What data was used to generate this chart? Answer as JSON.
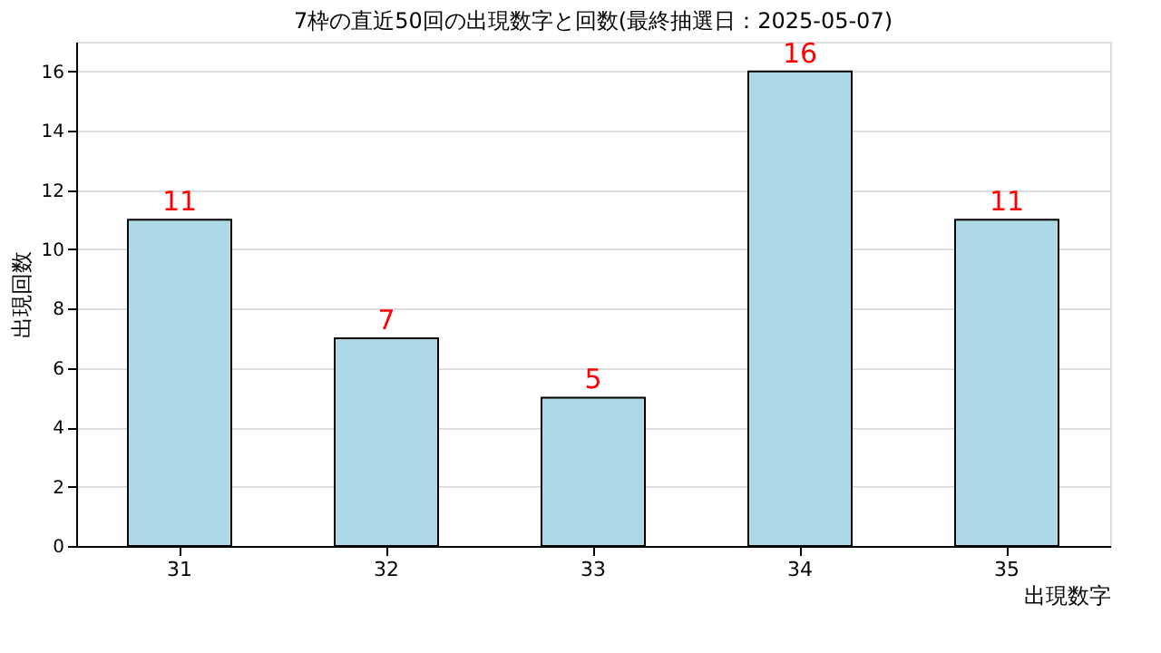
{
  "chart_data": {
    "type": "bar",
    "title": "7枠の直近50回の出現数字と回数(最終抽選日：2025-05-07)",
    "xlabel": "出現数字",
    "ylabel": "出現回数",
    "categories": [
      "31",
      "32",
      "33",
      "34",
      "35"
    ],
    "values": [
      11,
      7,
      5,
      16,
      11
    ],
    "color": "#add8e6",
    "ylim": [
      0,
      17
    ],
    "yticks": [
      0,
      2,
      4,
      6,
      8,
      10,
      12,
      14,
      16
    ],
    "grid": "y",
    "data_labels": true
  }
}
